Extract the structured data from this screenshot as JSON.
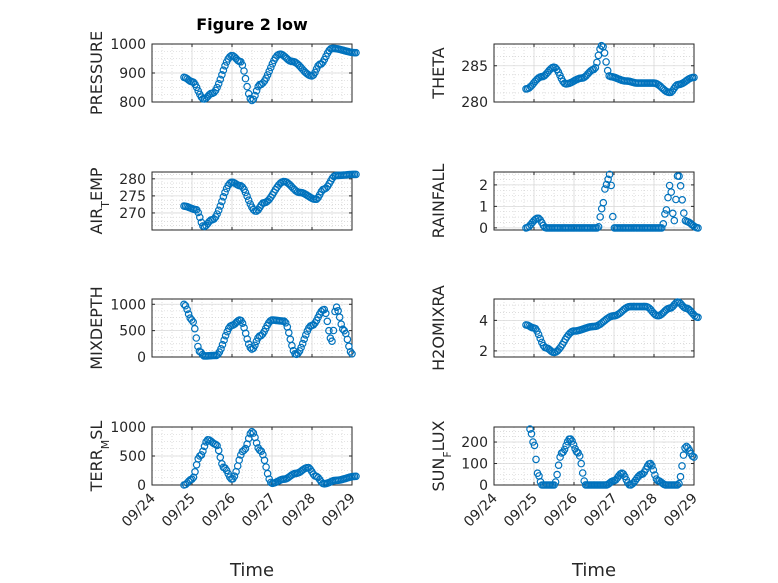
{
  "figure": {
    "title": "Figure 2 low",
    "xlabel": "Time",
    "x_tick_labels": [
      "09/24",
      "09/25",
      "09/26",
      "09/27",
      "09/28",
      "09/29"
    ]
  },
  "colors": {
    "marker": "#0072BD",
    "axis": "#262626",
    "grid": "#d9d9d9",
    "grid_minor": "#c8c8c8"
  },
  "chart_data": [
    {
      "type": "scatter",
      "ylabel": "PRESSURE",
      "ylabel_sub": "",
      "ylabel_tail": "",
      "ylim": [
        800,
        1000
      ],
      "yticks": [
        800,
        900,
        1000
      ],
      "xlim": [
        "09/24",
        "09/29"
      ],
      "key_points": [
        [
          0.8,
          885
        ],
        [
          1.0,
          870
        ],
        [
          1.3,
          810
        ],
        [
          1.5,
          830
        ],
        [
          2.0,
          960
        ],
        [
          2.2,
          940
        ],
        [
          2.5,
          805
        ],
        [
          2.7,
          860
        ],
        [
          3.2,
          965
        ],
        [
          3.5,
          940
        ],
        [
          4.0,
          890
        ],
        [
          4.2,
          930
        ],
        [
          4.5,
          985
        ],
        [
          5.1,
          970
        ]
      ]
    },
    {
      "type": "scatter",
      "ylabel": "THETA",
      "ylabel_sub": "",
      "ylabel_tail": "",
      "ylim": [
        280,
        288
      ],
      "yticks": [
        280,
        285
      ],
      "xlim": [
        "09/24",
        "09/29"
      ],
      "key_points": [
        [
          0.8,
          281.8
        ],
        [
          1.2,
          283.5
        ],
        [
          1.5,
          284.8
        ],
        [
          1.8,
          282.5
        ],
        [
          2.2,
          283.3
        ],
        [
          2.5,
          284.5
        ],
        [
          2.7,
          287.8
        ],
        [
          2.9,
          283.5
        ],
        [
          3.3,
          282.9
        ],
        [
          3.6,
          282.6
        ],
        [
          4.0,
          282.6
        ],
        [
          4.4,
          281.3
        ],
        [
          4.6,
          282.4
        ],
        [
          5.0,
          283.4
        ]
      ]
    },
    {
      "type": "scatter",
      "ylabel": "AIR",
      "ylabel_sub": "T",
      "ylabel_tail": "EMP",
      "ylim": [
        265,
        282
      ],
      "yticks": [
        270,
        275,
        280
      ],
      "xlim": [
        "09/24",
        "09/29"
      ],
      "key_points": [
        [
          0.8,
          272
        ],
        [
          1.1,
          271
        ],
        [
          1.3,
          266
        ],
        [
          1.5,
          268
        ],
        [
          2.0,
          279
        ],
        [
          2.2,
          278
        ],
        [
          2.6,
          270.5
        ],
        [
          2.8,
          273
        ],
        [
          3.3,
          279.2
        ],
        [
          3.7,
          276
        ],
        [
          4.1,
          274
        ],
        [
          4.3,
          277
        ],
        [
          4.6,
          281
        ],
        [
          5.1,
          281.3
        ]
      ]
    },
    {
      "type": "scatter",
      "ylabel": "RAINFALL",
      "ylabel_sub": "",
      "ylabel_tail": "",
      "ylim": [
        -0.1,
        2.6
      ],
      "yticks": [
        0,
        1,
        2
      ],
      "xlim": [
        "09/24",
        "09/29"
      ],
      "key_points": [
        [
          0.8,
          0
        ],
        [
          1.1,
          0.45
        ],
        [
          1.3,
          0
        ],
        [
          2.6,
          0
        ],
        [
          2.7,
          0.9
        ],
        [
          2.8,
          2.0
        ],
        [
          2.9,
          2.5
        ],
        [
          3.0,
          0
        ],
        [
          4.2,
          0
        ],
        [
          4.3,
          0.8
        ],
        [
          4.4,
          2.0
        ],
        [
          4.5,
          0.3
        ],
        [
          4.6,
          2.5
        ],
        [
          4.8,
          0.3
        ],
        [
          5.1,
          0
        ]
      ]
    },
    {
      "type": "scatter",
      "ylabel": "MIXDEPTH",
      "ylabel_sub": "",
      "ylabel_tail": "",
      "ylim": [
        0,
        1100
      ],
      "yticks": [
        0,
        500,
        1000
      ],
      "xlim": [
        "09/24",
        "09/29"
      ],
      "key_points": [
        [
          0.8,
          1000
        ],
        [
          1.0,
          700
        ],
        [
          1.2,
          100
        ],
        [
          1.3,
          20
        ],
        [
          1.6,
          30
        ],
        [
          2.0,
          600
        ],
        [
          2.2,
          700
        ],
        [
          2.5,
          150
        ],
        [
          2.7,
          400
        ],
        [
          3.0,
          700
        ],
        [
          3.3,
          680
        ],
        [
          3.6,
          50
        ],
        [
          4.0,
          600
        ],
        [
          4.3,
          900
        ],
        [
          4.5,
          300
        ],
        [
          4.6,
          950
        ],
        [
          4.8,
          500
        ],
        [
          5.0,
          60
        ]
      ]
    },
    {
      "type": "scatter",
      "ylabel": "H2OMIXRA",
      "ylabel_sub": "",
      "ylabel_tail": "",
      "ylim": [
        1.6,
        5.4
      ],
      "yticks": [
        2,
        4
      ],
      "xlim": [
        "09/24",
        "09/29"
      ],
      "key_points": [
        [
          0.8,
          3.7
        ],
        [
          1.0,
          3.5
        ],
        [
          1.3,
          2.2
        ],
        [
          1.5,
          1.9
        ],
        [
          2.0,
          3.3
        ],
        [
          2.5,
          3.6
        ],
        [
          3.0,
          4.3
        ],
        [
          3.4,
          4.9
        ],
        [
          3.8,
          4.9
        ],
        [
          4.1,
          4.3
        ],
        [
          4.4,
          4.8
        ],
        [
          4.6,
          5.2
        ],
        [
          4.8,
          4.8
        ],
        [
          5.1,
          4.2
        ]
      ]
    },
    {
      "type": "scatter",
      "ylabel": "TERR",
      "ylabel_sub": "M",
      "ylabel_tail": "SL",
      "ylim": [
        0,
        1000
      ],
      "yticks": [
        0,
        500,
        1000
      ],
      "xlim": [
        "09/24",
        "09/29"
      ],
      "key_points": [
        [
          0.8,
          0
        ],
        [
          1.0,
          100
        ],
        [
          1.2,
          500
        ],
        [
          1.4,
          780
        ],
        [
          1.6,
          700
        ],
        [
          1.8,
          300
        ],
        [
          2.0,
          100
        ],
        [
          2.3,
          600
        ],
        [
          2.5,
          920
        ],
        [
          2.7,
          600
        ],
        [
          3.0,
          30
        ],
        [
          3.3,
          100
        ],
        [
          3.6,
          200
        ],
        [
          3.9,
          300
        ],
        [
          4.1,
          150
        ],
        [
          4.3,
          20
        ],
        [
          4.6,
          80
        ],
        [
          5.1,
          150
        ]
      ]
    },
    {
      "type": "scatter",
      "ylabel": "SUN",
      "ylabel_sub": "F",
      "ylabel_tail": "LUX",
      "ylim": [
        0,
        270
      ],
      "yticks": [
        0,
        100,
        200
      ],
      "xlim": [
        "09/24",
        "09/29"
      ],
      "key_points": [
        [
          0.9,
          260
        ],
        [
          1.0,
          190
        ],
        [
          1.1,
          50
        ],
        [
          1.2,
          0
        ],
        [
          1.5,
          0
        ],
        [
          1.7,
          150
        ],
        [
          1.9,
          215
        ],
        [
          2.1,
          150
        ],
        [
          2.3,
          0
        ],
        [
          2.8,
          0
        ],
        [
          3.0,
          20
        ],
        [
          3.2,
          55
        ],
        [
          3.4,
          0
        ],
        [
          3.7,
          50
        ],
        [
          3.9,
          100
        ],
        [
          4.1,
          20
        ],
        [
          4.3,
          0
        ],
        [
          4.6,
          0
        ],
        [
          4.8,
          180
        ],
        [
          5.0,
          130
        ]
      ]
    }
  ]
}
